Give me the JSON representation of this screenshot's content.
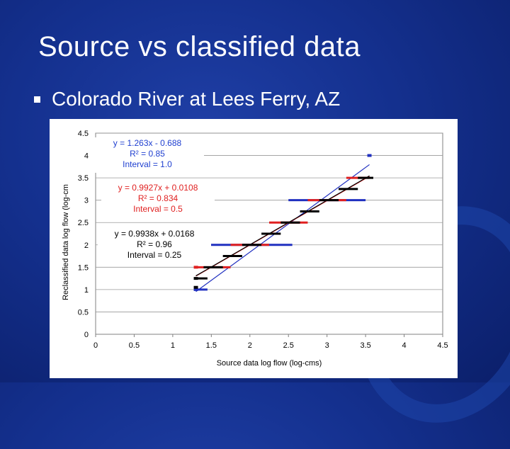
{
  "slide": {
    "title": "Source vs classified data",
    "bullet": "Colorado River at Lees Ferry, AZ"
  },
  "colors": {
    "background": "#14308e",
    "blue_series": "#2030c0",
    "red_series": "#e02020",
    "black_series": "#000000",
    "equation_blue": "#2040d0",
    "equation_red": "#e02020"
  },
  "chart_data": {
    "type": "scatter",
    "xlabel": "Source data log flow (log-cms)",
    "ylabel": "Reclassified data log flow (log-cm",
    "xlim": [
      0,
      4.5
    ],
    "ylim": [
      0,
      4.5
    ],
    "x_ticks": [
      "0",
      "0.5",
      "1",
      "1.5",
      "2",
      "2.5",
      "3",
      "3.5",
      "4",
      "4.5"
    ],
    "y_ticks": [
      "0",
      "0.5",
      "1",
      "1.5",
      "2",
      "2.5",
      "3",
      "3.5",
      "4",
      "4.5"
    ],
    "grid": "horizontal",
    "series": [
      {
        "color": "#2030c0",
        "segments": [
          [
            1.3,
            1.45,
            1.0
          ],
          [
            1.45,
            2.05,
            2.0
          ],
          [
            2.05,
            2.55,
            2.0
          ],
          [
            2.5,
            3.05,
            3.0
          ],
          [
            3.05,
            3.5,
            3.0
          ]
        ],
        "points": [
          [
            3.55,
            4.0
          ],
          [
            1.3,
            1.0
          ]
        ],
        "trendline": {
          "x": [
            1.3,
            3.55
          ],
          "y": [
            0.954,
            3.796
          ]
        },
        "annotation": [
          "y = 1.263x - 0.688",
          "R² = 0.85",
          "Interval = 1.0"
        ]
      },
      {
        "color": "#e02020",
        "segments": [
          [
            1.3,
            1.55,
            1.5
          ],
          [
            1.55,
            1.75,
            1.5
          ],
          [
            1.75,
            2.05,
            2.0
          ],
          [
            2.05,
            2.25,
            2.0
          ],
          [
            2.25,
            2.55,
            2.5
          ],
          [
            2.55,
            2.75,
            2.5
          ],
          [
            2.75,
            3.05,
            3.0
          ],
          [
            3.05,
            3.25,
            3.0
          ],
          [
            3.25,
            3.55,
            3.5
          ]
        ],
        "points": [
          [
            1.3,
            1.5
          ]
        ],
        "trendline": {
          "x": [
            1.3,
            3.55
          ],
          "y": [
            1.301,
            3.535
          ]
        },
        "annotation": [
          "y = 0.9927x + 0.0108",
          "R² = 0.834",
          "Interval = 0.5"
        ]
      },
      {
        "color": "#000000",
        "segments": [
          [
            1.3,
            1.45,
            1.25
          ],
          [
            1.4,
            1.65,
            1.5
          ],
          [
            1.65,
            1.9,
            1.75
          ],
          [
            1.9,
            2.15,
            2.0
          ],
          [
            2.15,
            2.4,
            2.25
          ],
          [
            2.4,
            2.65,
            2.5
          ],
          [
            2.65,
            2.9,
            2.75
          ],
          [
            2.9,
            3.15,
            3.0
          ],
          [
            3.15,
            3.4,
            3.25
          ],
          [
            3.4,
            3.6,
            3.5
          ]
        ],
        "points": [
          [
            1.3,
            1.05
          ],
          [
            1.3,
            1.25
          ]
        ],
        "trendline": {
          "x": [
            1.3,
            3.55
          ],
          "y": [
            1.308,
            3.545
          ]
        },
        "annotation": [
          "y = 0.9938x + 0.0168",
          "R² = 0.96",
          "Interval = 0.25"
        ]
      }
    ]
  }
}
